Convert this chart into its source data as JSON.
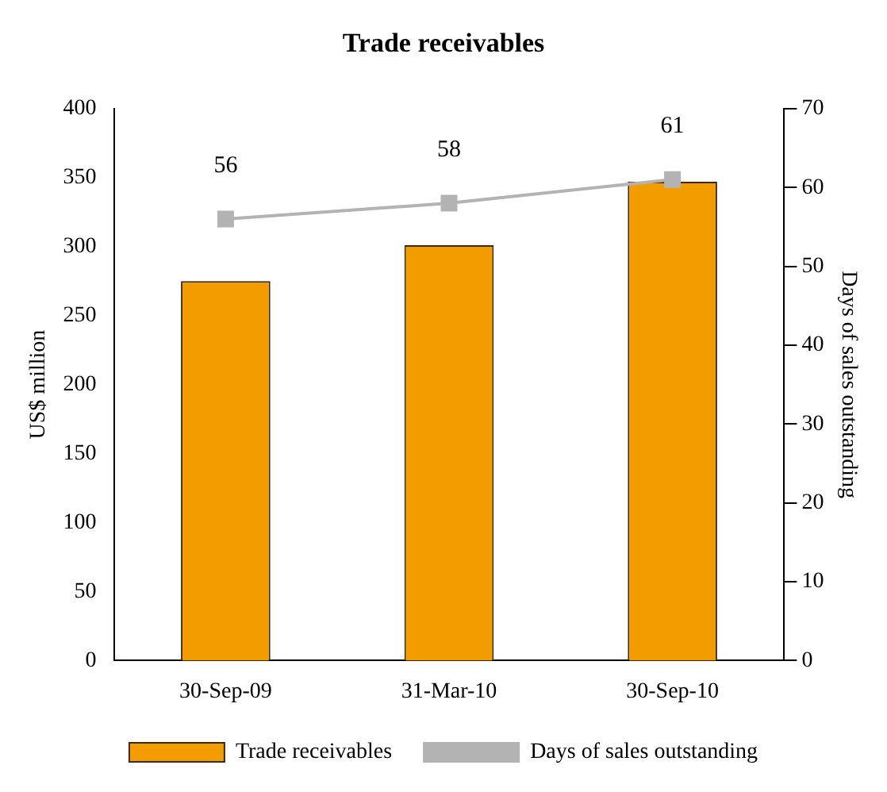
{
  "chart_data": {
    "type": "bar",
    "title": "Trade receivables",
    "ylabel": "US$ million",
    "y2label": "Days of sales outstanding",
    "categories": [
      "30-Sep-09",
      "31-Mar-10",
      "30-Sep-10"
    ],
    "series": [
      {
        "name": "Trade receivables",
        "color": "#f39c00",
        "values": [
          275,
          301,
          347
        ]
      },
      {
        "name": "Days of sales outstanding",
        "type": "line",
        "axis": "y2",
        "color": "#b3b3b3",
        "values": [
          56,
          58,
          61
        ],
        "value_labels": [
          "56",
          "58",
          "61"
        ]
      }
    ],
    "ylim": [
      0,
      400
    ],
    "yticks": [
      0,
      50,
      100,
      150,
      200,
      250,
      300,
      350,
      400
    ],
    "y2lim": [
      0,
      70
    ],
    "y2ticks": [
      0,
      10,
      20,
      30,
      40,
      50,
      60,
      70
    ],
    "grid": false,
    "legend": "bottom",
    "marker": "square",
    "line_style": "solid"
  }
}
